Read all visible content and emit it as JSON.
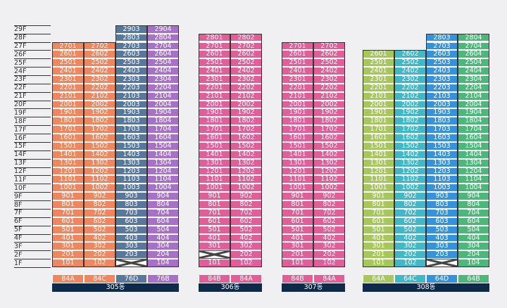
{
  "floors": [
    "1F",
    "2F",
    "3F",
    "4F",
    "5F",
    "6F",
    "7F",
    "8F",
    "9F",
    "10F",
    "11F",
    "12F",
    "13F",
    "14F",
    "15F",
    "16F",
    "17F",
    "18F",
    "19F",
    "20F",
    "21F",
    "22F",
    "23F",
    "24F",
    "25F",
    "26F",
    "27F",
    "28F",
    "29F"
  ],
  "colors": {
    "orange": "#f0855e",
    "blueSlate": "#58779c",
    "purple": "#a771c9",
    "pink": "#e15e98",
    "lime": "#a6c75a",
    "cyan": "#3fb8c8",
    "blue": "#3493dc",
    "green": "#4bb879"
  },
  "buildings": [
    {
      "name": "305동",
      "columns": [
        {
          "type": "84A",
          "color": "orange",
          "line": "01",
          "floors": 27,
          "missing": []
        },
        {
          "type": "84C",
          "color": "orange",
          "line": "02",
          "floors": 27,
          "missing": []
        },
        {
          "type": "76D",
          "color": "blueSlate",
          "line": "03",
          "floors": 29,
          "missing": [
            1
          ]
        },
        {
          "type": "76B",
          "color": "purple",
          "line": "04",
          "floors": 29,
          "missing": []
        }
      ]
    },
    {
      "name": "306동",
      "columns": [
        {
          "type": "84B",
          "color": "pink",
          "line": "01",
          "floors": 28,
          "missing": [
            2
          ]
        },
        {
          "type": "84A",
          "color": "pink",
          "line": "02",
          "floors": 28,
          "missing": []
        }
      ]
    },
    {
      "name": "307동",
      "columns": [
        {
          "type": "84B",
          "color": "pink",
          "line": "01",
          "floors": 27,
          "missing": []
        },
        {
          "type": "84A",
          "color": "pink",
          "line": "02",
          "floors": 27,
          "missing": []
        }
      ]
    },
    {
      "name": "308동",
      "columns": [
        {
          "type": "64A",
          "color": "lime",
          "line": "01",
          "floors": 26,
          "missing": []
        },
        {
          "type": "64C",
          "color": "cyan",
          "line": "02",
          "floors": 26,
          "missing": []
        },
        {
          "type": "64D",
          "color": "blue",
          "line": "03",
          "floors": 28,
          "missing": [
            1
          ]
        },
        {
          "type": "64B",
          "color": "green",
          "line": "04",
          "floors": 28,
          "missing": []
        }
      ]
    }
  ]
}
